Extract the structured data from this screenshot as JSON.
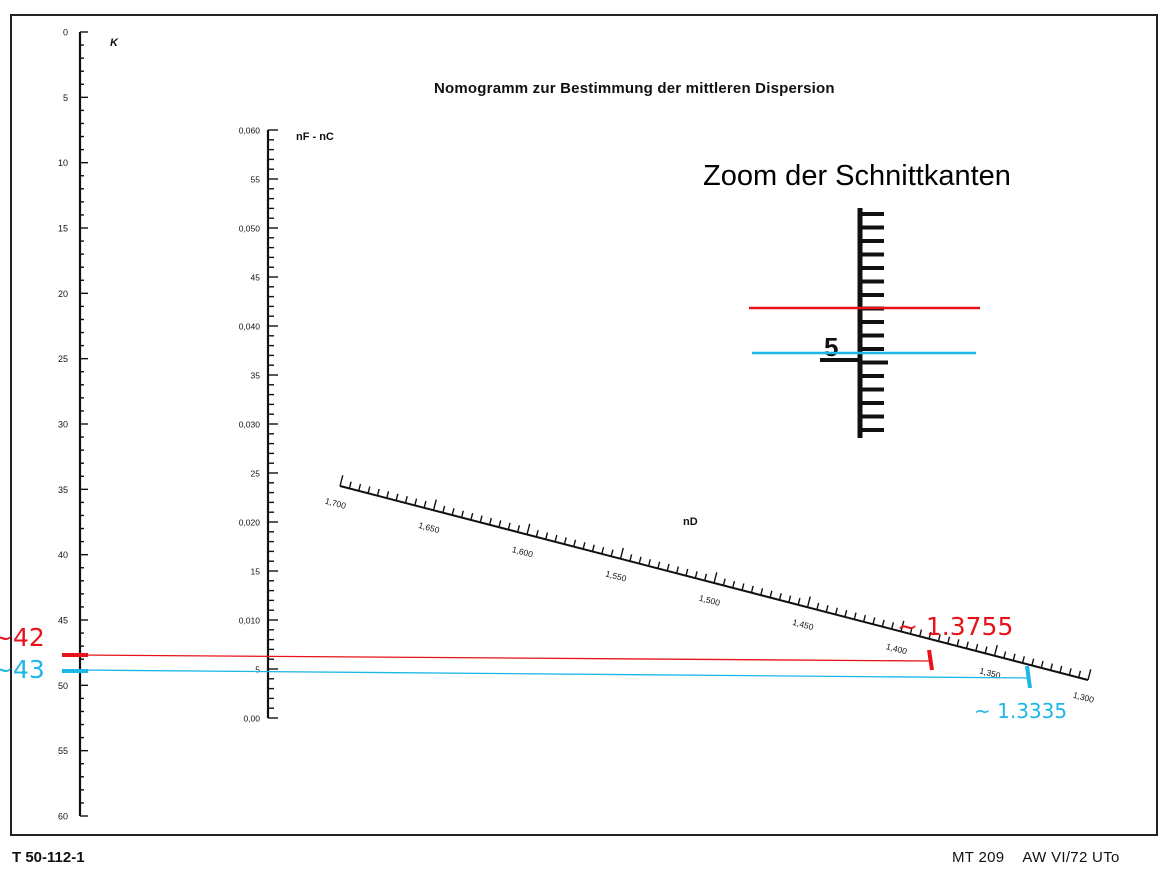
{
  "title": "Nomogramm zur Bestimmung der mittleren Dispersion",
  "zoom_title": "Zoom der Schnittkanten",
  "footer": {
    "code": "T 50-112-1",
    "ref": "MT 209",
    "version": "AW VI/72 UTo"
  },
  "axes": {
    "k": {
      "label": "K",
      "tick_labels": [
        "0",
        "5",
        "10",
        "15",
        "20",
        "25",
        "30",
        "35",
        "40",
        "45",
        "50",
        "55",
        "60"
      ]
    },
    "nf_nc": {
      "label": "nF - nC",
      "tick_labels": [
        "0,060",
        "55",
        "0,050",
        "45",
        "0,040",
        "35",
        "0,030",
        "25",
        "0,020",
        "15",
        "0,010",
        "5",
        "0,00"
      ]
    },
    "nd": {
      "label": "nD",
      "tick_labels": [
        "1,700",
        "1,650",
        "1,600",
        "1,550",
        "1,500",
        "1,450",
        "1,400",
        "1,350",
        "1,300"
      ]
    }
  },
  "annotations": {
    "red_k": "~42",
    "blue_k": "~43",
    "red_nd": "~ 1.3755",
    "blue_nd": "~ 1.3335"
  },
  "zoom": {
    "tick_label": "5"
  },
  "colors": {
    "red": "#e8131a",
    "blue": "#1bb7e6",
    "ink": "#111111"
  }
}
